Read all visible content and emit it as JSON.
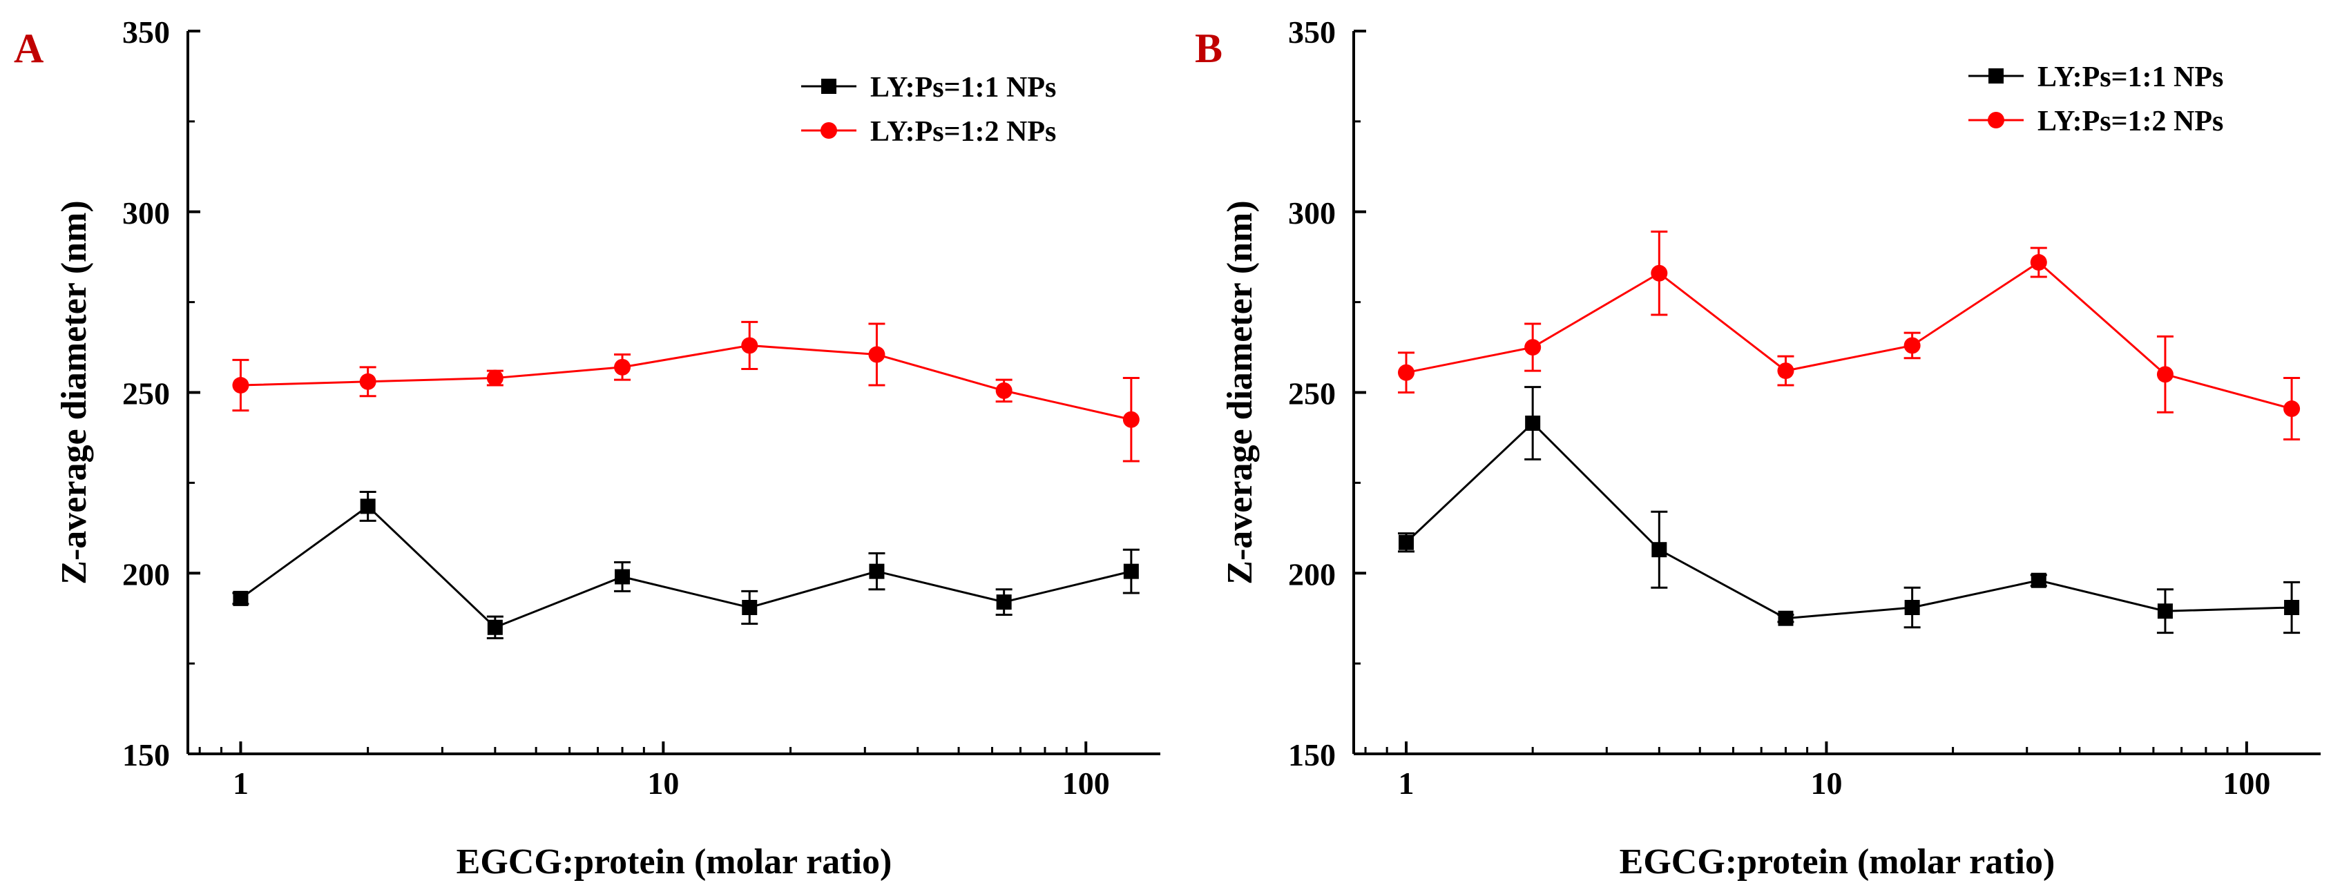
{
  "colors": {
    "series_1": "#000000",
    "series_2": "#ff0000",
    "panel_label": "#c00000"
  },
  "chart_data": [
    {
      "panel_label": "A",
      "type": "line",
      "xscale": "log",
      "xlabel": "EGCG:protein (molar ratio)",
      "ylabel": "Z-average diameter (nm)",
      "xlim": [
        0.75,
        150
      ],
      "ylim": [
        150,
        350
      ],
      "xticks": [
        1,
        10,
        100
      ],
      "xtick_labels": [
        "1",
        "10",
        "100"
      ],
      "yticks": [
        150,
        200,
        250,
        300,
        350
      ],
      "ytick_labels": [
        "150",
        "200",
        "250",
        "300",
        "350"
      ],
      "x": [
        1,
        2,
        4,
        8,
        16,
        32,
        64,
        128
      ],
      "legend_position": "top-right",
      "series": [
        {
          "name": "LY:Ps=1:1 NPs",
          "color": "#000000",
          "marker": "square",
          "values": [
            193,
            218.5,
            185,
            199,
            190.5,
            200.5,
            192,
            200.5
          ],
          "errors": [
            1.5,
            4,
            3,
            4,
            4.5,
            5,
            3.5,
            6
          ]
        },
        {
          "name": "LY:Ps=1:2 NPs",
          "color": "#ff0000",
          "marker": "circle",
          "values": [
            252,
            253,
            254,
            257,
            263,
            260.5,
            250.5,
            242.5
          ],
          "errors": [
            7,
            4,
            2,
            3.5,
            6.5,
            8.5,
            3,
            11.5
          ]
        }
      ]
    },
    {
      "panel_label": "B",
      "type": "line",
      "xscale": "log",
      "xlabel": "EGCG:protein (molar ratio)",
      "ylabel": "Z-average diameter (nm)",
      "xlim": [
        0.75,
        150
      ],
      "ylim": [
        150,
        350
      ],
      "xticks": [
        1,
        10,
        100
      ],
      "xtick_labels": [
        "1",
        "10",
        "100"
      ],
      "yticks": [
        150,
        200,
        250,
        300,
        350
      ],
      "ytick_labels": [
        "150",
        "200",
        "250",
        "300",
        "350"
      ],
      "x": [
        1,
        2,
        4,
        8,
        16,
        32,
        64,
        128
      ],
      "legend_position": "top-right",
      "series": [
        {
          "name": "LY:Ps=1:1 NPs",
          "color": "#000000",
          "marker": "square",
          "values": [
            208.5,
            241.5,
            206.5,
            187.5,
            190.5,
            198,
            189.5,
            190.5
          ],
          "errors": [
            2.5,
            10,
            10.5,
            1,
            5.5,
            1.5,
            6,
            7
          ]
        },
        {
          "name": "LY:Ps=1:2 NPs",
          "color": "#ff0000",
          "marker": "circle",
          "values": [
            255.5,
            262.5,
            283,
            256,
            263,
            286,
            255,
            245.5
          ],
          "errors": [
            5.5,
            6.5,
            11.5,
            4,
            3.5,
            4,
            10.5,
            8.5
          ]
        }
      ]
    }
  ]
}
